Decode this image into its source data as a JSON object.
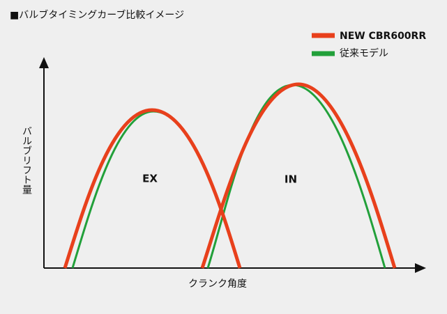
{
  "title": "■バルブタイミングカーブ比較イメージ",
  "legend": [
    {
      "name": "NEW CBR600RR",
      "color": "#e8401c"
    },
    {
      "name": "従来モデル",
      "color": "#22a03a"
    }
  ],
  "y_axis_label": "バルブリフト量",
  "x_axis_label": "クランク角度",
  "curve_labels": [
    "EX",
    "IN"
  ]
}
